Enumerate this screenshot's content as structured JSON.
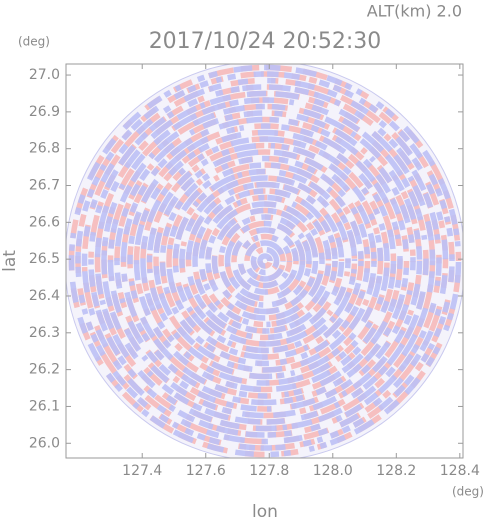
{
  "chart_data": {
    "type": "radar-ppi",
    "title": "2017/10/24 20:52:30",
    "subtitle": "ALT(km) 2.0",
    "x_label": "lon",
    "y_label": "lat",
    "x_unit": "(deg)",
    "y_unit": "(deg)",
    "xlim": [
      127.16,
      128.41
    ],
    "ylim": [
      25.96,
      27.03
    ],
    "xticks": [
      127.4,
      127.6,
      127.8,
      {
        "value": 128.0,
        "label": "128.0"
      },
      128.2,
      128.4
    ],
    "yticks": [
      {
        "value": 26.0,
        "label": "26.0"
      },
      26.1,
      26.2,
      26.3,
      26.4,
      26.5,
      26.6,
      26.7,
      26.8,
      26.9,
      {
        "value": 27.0,
        "label": "27.0"
      }
    ],
    "colors": [
      "#f6b9b9",
      "#bcc0f5"
    ]
  }
}
